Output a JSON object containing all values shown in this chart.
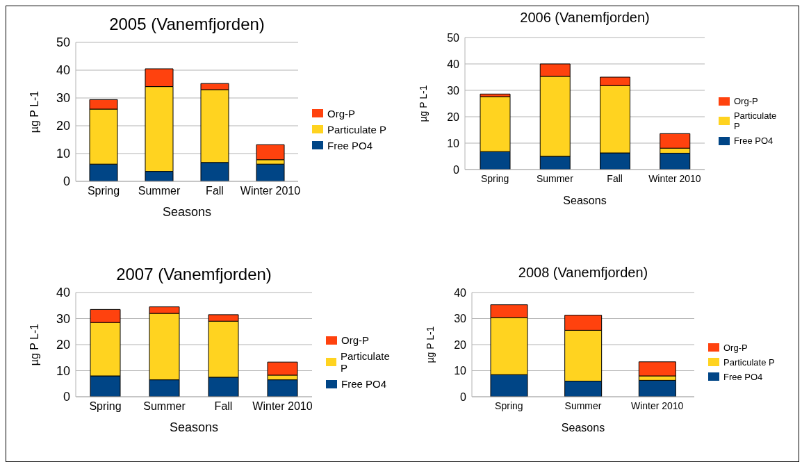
{
  "chart_data": [
    {
      "type": "bar",
      "title": "2005  (Vanemfjorden)",
      "xlabel": "Seasons",
      "ylabel": "µg P L-1",
      "categories": [
        "Spring",
        "Summer",
        "Fall",
        "Winter 2010"
      ],
      "stacked": true,
      "ylim": [
        0,
        50
      ],
      "yticks": [
        0,
        10,
        20,
        30,
        40,
        50
      ],
      "grid": "y",
      "legend": "right",
      "series": [
        {
          "name": "Free PO4",
          "color": "#004586",
          "values": [
            6.2,
            3.6,
            6.8,
            6.2
          ]
        },
        {
          "name": "Particulate P",
          "color": "#ffd320",
          "values": [
            19.8,
            30.5,
            26.2,
            1.6
          ]
        },
        {
          "name": "Org-P",
          "color": "#ff420e",
          "values": [
            3.4,
            6.4,
            2.2,
            5.4
          ]
        }
      ]
    },
    {
      "type": "bar",
      "title": "2006  (Vanemfjorden)",
      "xlabel": "Seasons",
      "ylabel": "µg P L-1",
      "categories": [
        "Spring",
        "Summer",
        "Fall",
        "Winter 2010"
      ],
      "stacked": true,
      "ylim": [
        0,
        50
      ],
      "yticks": [
        0,
        10,
        20,
        30,
        40,
        50
      ],
      "grid": "y",
      "legend": "right",
      "series": [
        {
          "name": "Free PO4",
          "color": "#004586",
          "values": [
            6.8,
            5.0,
            6.3,
            6.2
          ]
        },
        {
          "name": "Particulate P",
          "color": "#ffd320",
          "values": [
            20.8,
            30.3,
            25.5,
            1.9
          ]
        },
        {
          "name": "Org-P",
          "color": "#ff420e",
          "values": [
            1.0,
            4.7,
            3.2,
            5.5
          ]
        }
      ]
    },
    {
      "type": "bar",
      "title": "2007  (Vanemfjorden)",
      "xlabel": "Seasons",
      "ylabel": "µg P L-1",
      "categories": [
        "Spring",
        "Summer",
        "Fall",
        "Winter 2010"
      ],
      "stacked": true,
      "ylim": [
        0,
        40
      ],
      "yticks": [
        0,
        10,
        20,
        30,
        40
      ],
      "grid": "y",
      "legend": "right",
      "series": [
        {
          "name": "Free PO4",
          "color": "#004586",
          "values": [
            8.0,
            6.5,
            7.5,
            6.5
          ]
        },
        {
          "name": "Particulate P",
          "color": "#ffd320",
          "values": [
            20.5,
            25.5,
            21.5,
            1.8
          ]
        },
        {
          "name": "Org-P",
          "color": "#ff420e",
          "values": [
            5.0,
            2.5,
            2.5,
            5.0
          ]
        }
      ]
    },
    {
      "type": "bar",
      "title": "2008  (Vanemfjorden)",
      "xlabel": "Seasons",
      "ylabel": "µg P L-1",
      "categories": [
        "Spring",
        "Summer",
        "Winter 2010"
      ],
      "stacked": true,
      "ylim": [
        0,
        40
      ],
      "yticks": [
        0,
        10,
        20,
        30,
        40
      ],
      "grid": "y",
      "legend": "right",
      "series": [
        {
          "name": "Free PO4",
          "color": "#004586",
          "values": [
            8.5,
            6.0,
            6.3
          ]
        },
        {
          "name": "Particulate P",
          "color": "#ffd320",
          "values": [
            21.9,
            19.5,
            1.7
          ]
        },
        {
          "name": "Org-P",
          "color": "#ff420e",
          "values": [
            4.9,
            5.8,
            5.4
          ]
        }
      ]
    }
  ]
}
